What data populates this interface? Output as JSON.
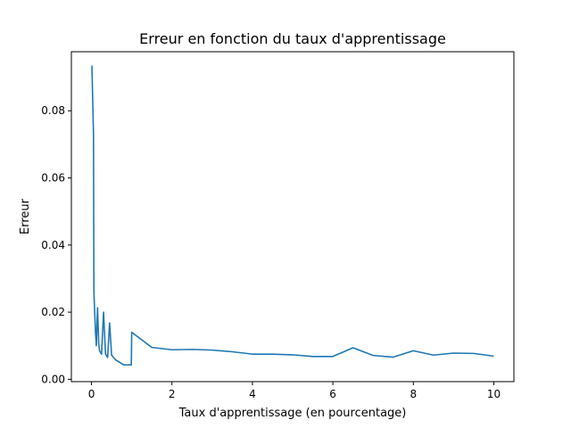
{
  "chart_data": {
    "type": "line",
    "title": "Erreur en fonction du taux d'apprentissage",
    "xlabel": "Taux d'apprentissage (en pourcentage)",
    "ylabel": "Erreur",
    "xlim": [
      -0.5,
      10.5
    ],
    "ylim": [
      -0.0007,
      0.0976
    ],
    "xticks": [
      0,
      2,
      4,
      6,
      8,
      10
    ],
    "xtick_labels": [
      "0",
      "2",
      "4",
      "6",
      "8",
      "10"
    ],
    "yticks": [
      0.0,
      0.02,
      0.04,
      0.06,
      0.08
    ],
    "ytick_labels": [
      "0.00",
      "0.02",
      "0.04",
      "0.06",
      "0.08"
    ],
    "grid": false,
    "color": "#1f77b4",
    "series": [
      {
        "x": [
          0.01,
          0.05,
          0.06,
          0.1,
          0.12,
          0.15,
          0.18,
          0.2,
          0.25,
          0.3,
          0.35,
          0.4,
          0.45,
          0.5,
          0.6,
          0.8,
          0.99,
          1.0,
          1.5,
          2.0,
          2.5,
          3.0,
          3.5,
          4.0,
          4.5,
          5.0,
          5.5,
          6.0,
          6.5,
          7.0,
          7.5,
          8.0,
          8.5,
          9.0,
          9.5,
          10.0
        ],
        "y": [
          0.0935,
          0.073,
          0.026,
          0.014,
          0.01,
          0.0213,
          0.0105,
          0.0085,
          0.0075,
          0.02,
          0.0075,
          0.0065,
          0.0168,
          0.0072,
          0.0058,
          0.0043,
          0.0043,
          0.014,
          0.0095,
          0.0088,
          0.0089,
          0.0087,
          0.0082,
          0.0075,
          0.0075,
          0.0073,
          0.0068,
          0.0068,
          0.0094,
          0.0071,
          0.0066,
          0.0085,
          0.0072,
          0.0078,
          0.0077,
          0.0069
        ]
      }
    ]
  }
}
